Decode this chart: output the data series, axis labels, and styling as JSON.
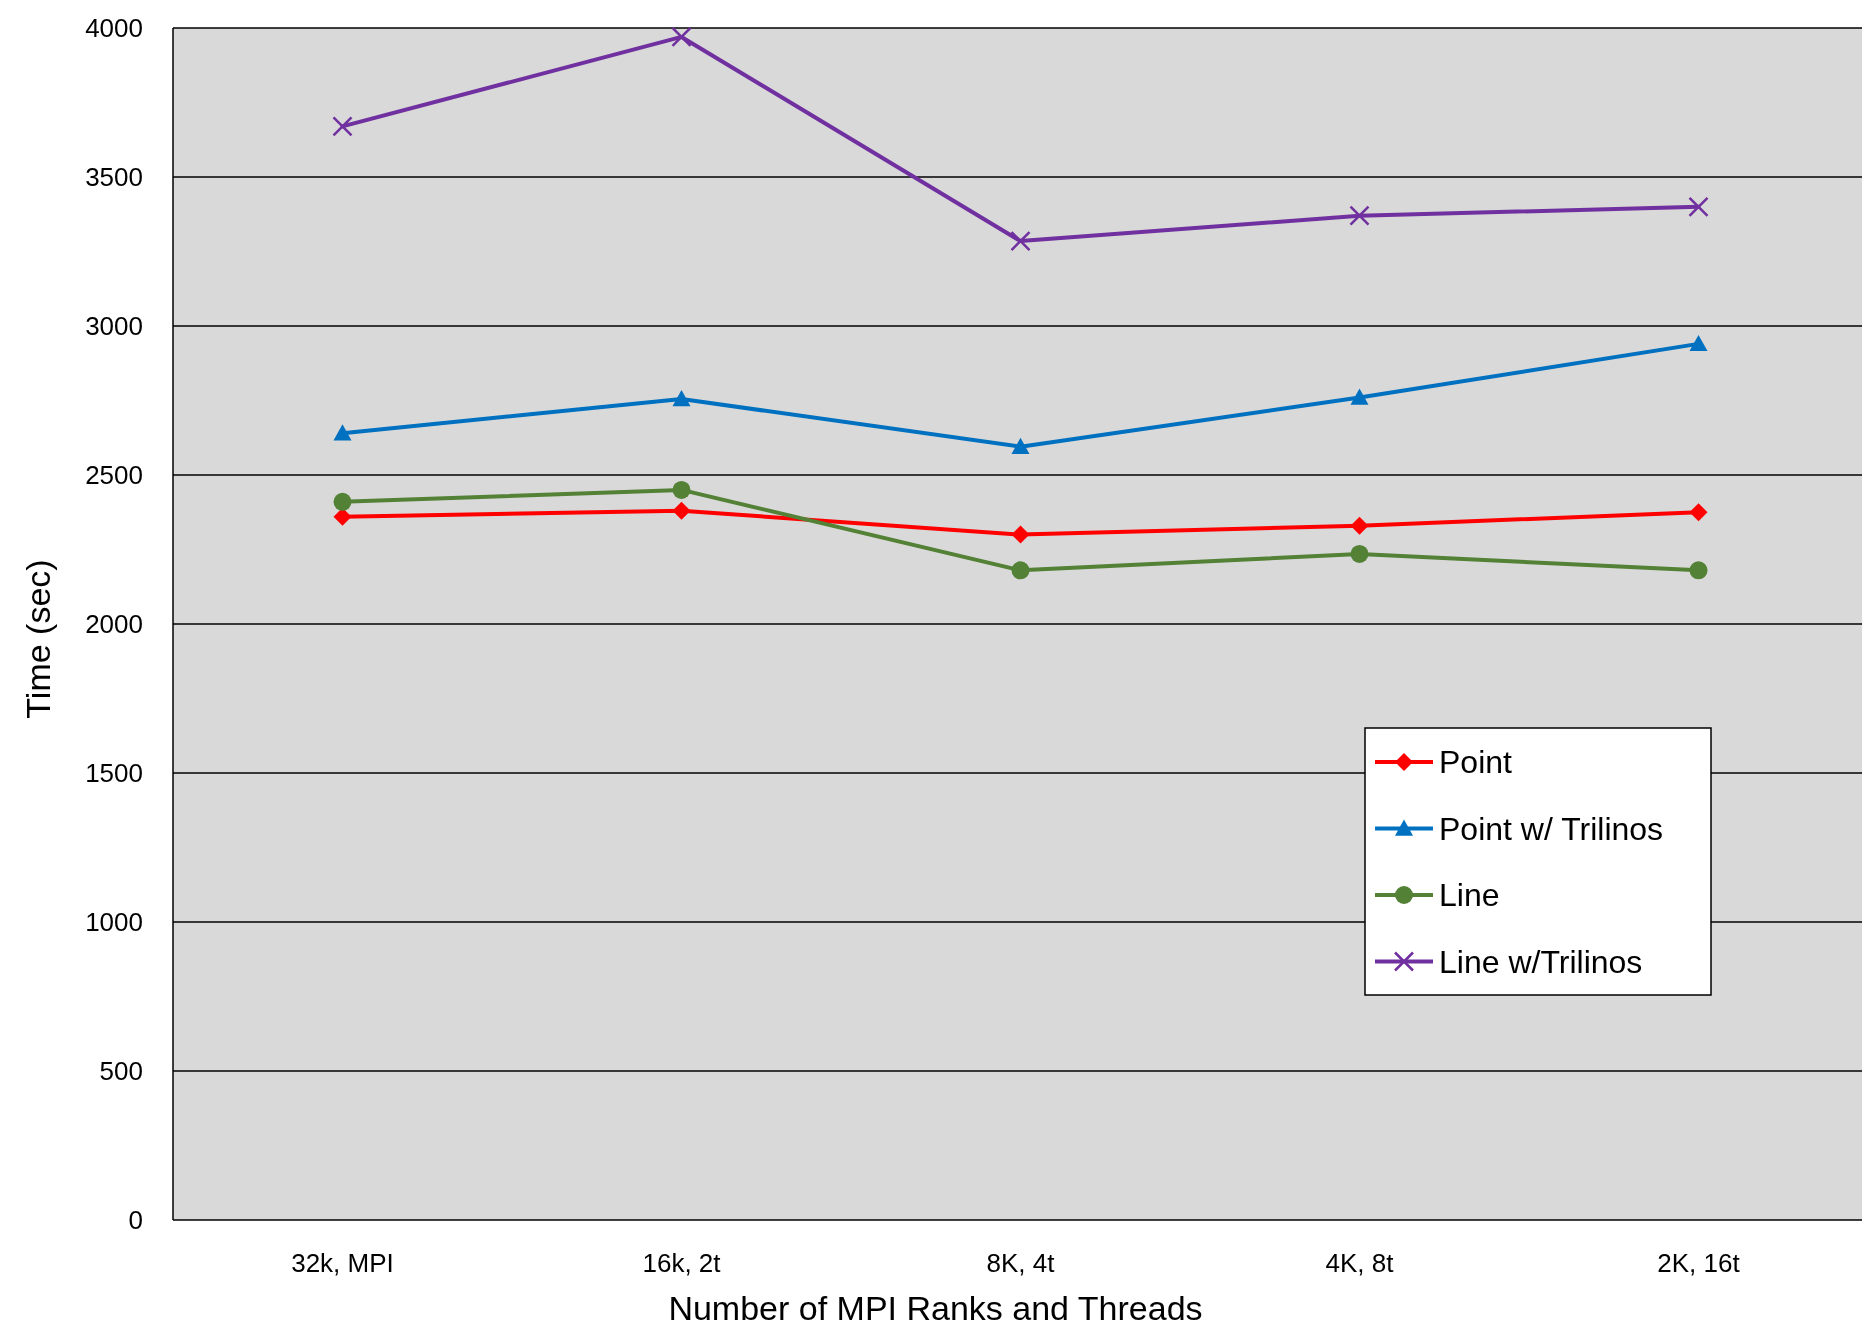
{
  "chart_data": {
    "type": "line",
    "xlabel": "Number of MPI Ranks and Threads",
    "ylabel": "Time (sec)",
    "categories": [
      "32k, MPI",
      "16k, 2t",
      "8K, 4t",
      "4K, 8t",
      "2K, 16t"
    ],
    "ylim": [
      0,
      4000
    ],
    "yticks": [
      0,
      500,
      1000,
      1500,
      2000,
      2500,
      3000,
      3500,
      4000
    ],
    "grid": "y",
    "legend": "bottom right",
    "series": [
      {
        "name": "Point",
        "color": "#ff0000",
        "marker": "diamond",
        "values": [
          2360,
          2380,
          2300,
          2330,
          2375
        ]
      },
      {
        "name": "Point w/ Trilinos",
        "color": "#0070c0",
        "marker": "triangle",
        "values": [
          2640,
          2755,
          2595,
          2760,
          2940
        ]
      },
      {
        "name": "Line",
        "color": "#538135",
        "marker": "circle",
        "values": [
          2410,
          2450,
          2180,
          2235,
          2180
        ]
      },
      {
        "name": "Line w/Trilinos",
        "color": "#7030a0",
        "marker": "cross",
        "values": [
          3670,
          3970,
          3285,
          3370,
          3400
        ]
      }
    ]
  }
}
